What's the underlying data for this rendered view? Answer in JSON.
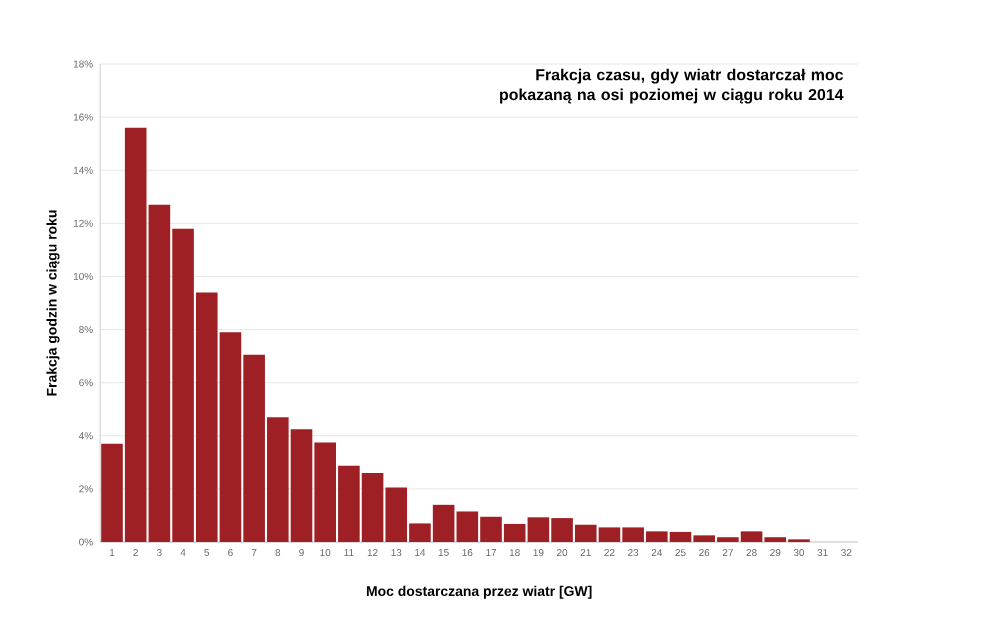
{
  "chart_data": {
    "type": "bar",
    "title": "Frakcja czasu, gdy wiatr dostarczał  moc pokazaną na osi poziomej w ciągu roku 2014",
    "xlabel": "Moc dostarczana przez wiatr [GW]",
    "ylabel": "Frakcja godzin w ciągu roku",
    "categories": [
      "1",
      "2",
      "3",
      "4",
      "5",
      "6",
      "7",
      "8",
      "9",
      "10",
      "11",
      "12",
      "13",
      "14",
      "15",
      "16",
      "17",
      "18",
      "19",
      "20",
      "21",
      "22",
      "23",
      "24",
      "25",
      "26",
      "27",
      "28",
      "29",
      "30",
      "31",
      "32"
    ],
    "values": [
      3.7,
      15.6,
      12.7,
      11.8,
      9.4,
      7.9,
      7.05,
      4.7,
      4.25,
      3.75,
      2.87,
      2.6,
      2.05,
      0.7,
      1.4,
      1.15,
      0.95,
      0.68,
      0.93,
      0.9,
      0.65,
      0.55,
      0.55,
      0.4,
      0.38,
      0.25,
      0.18,
      0.4,
      0.18,
      0.1,
      0,
      0
    ],
    "color": "#9e1f24",
    "ylim": [
      0,
      18
    ],
    "yticks": [
      {
        "value": 0,
        "label": "0%"
      },
      {
        "value": 2,
        "label": "2%"
      },
      {
        "value": 4,
        "label": "4%"
      },
      {
        "value": 6,
        "label": "6%"
      },
      {
        "value": 8,
        "label": "8%"
      },
      {
        "value": 10,
        "label": "10%"
      },
      {
        "value": 12,
        "label": "12%"
      },
      {
        "value": 14,
        "label": "14%"
      },
      {
        "value": 16,
        "label": "16%"
      },
      {
        "value": 18,
        "label": "18%"
      }
    ],
    "grid": "y"
  }
}
